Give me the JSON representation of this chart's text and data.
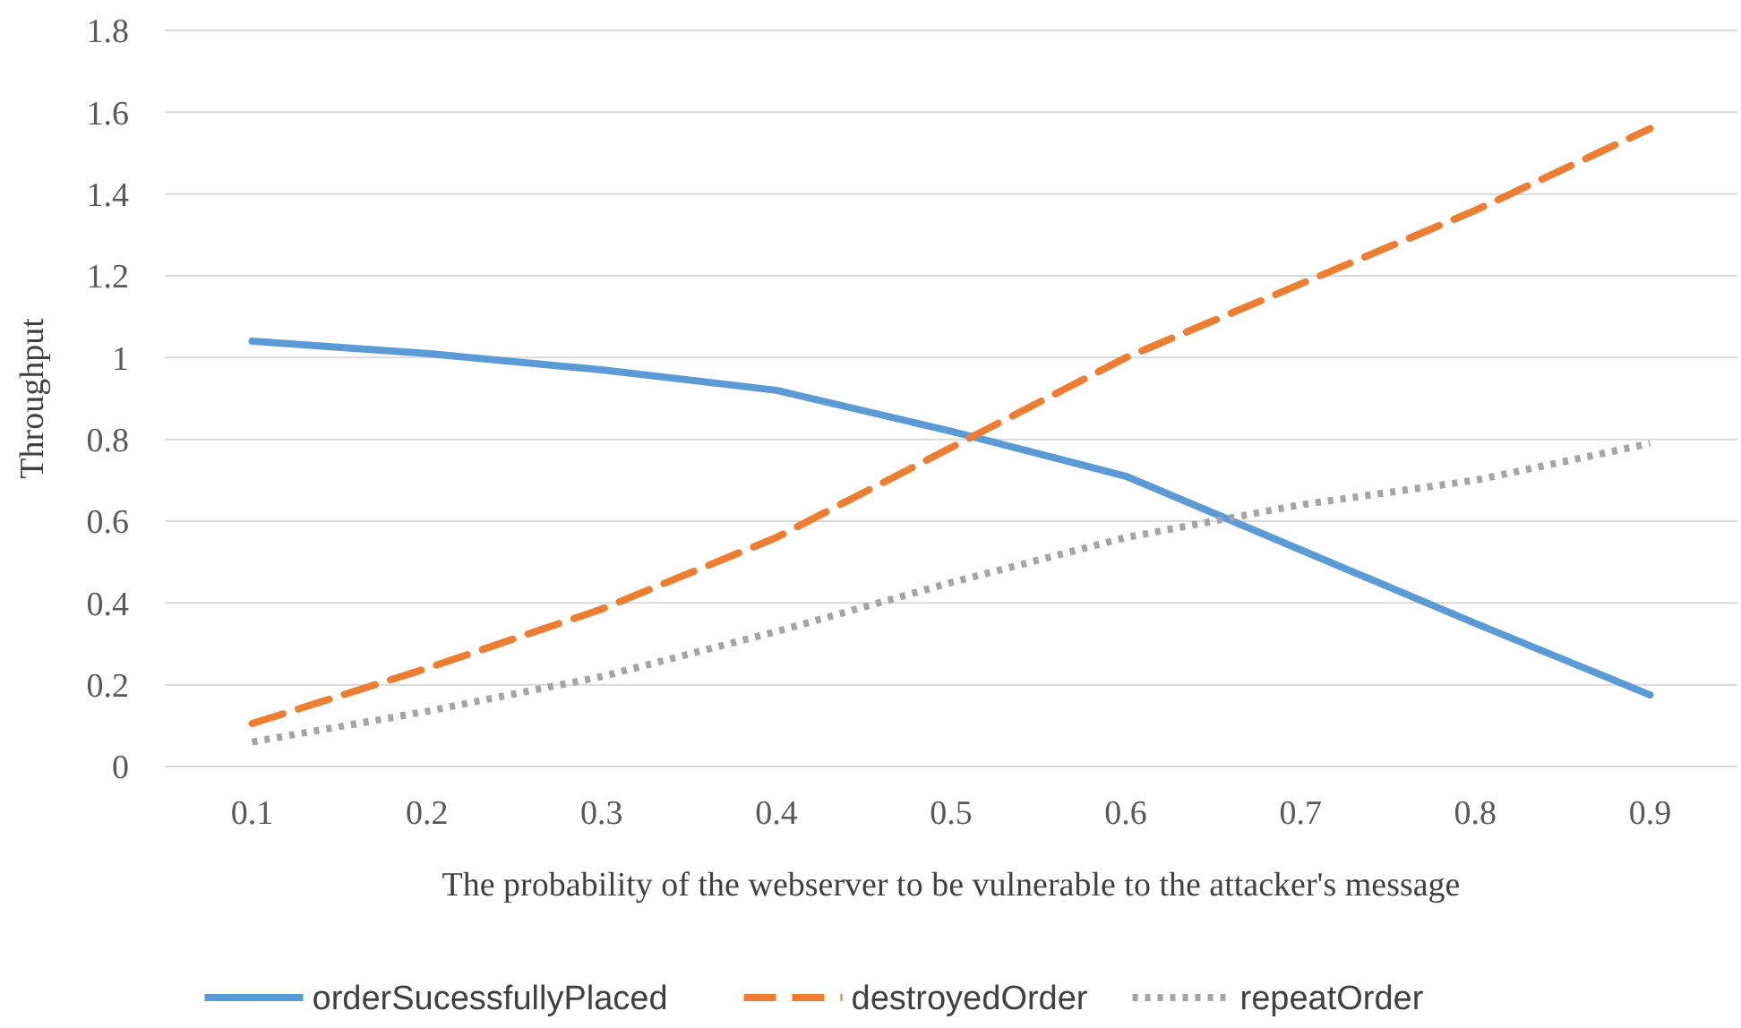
{
  "chart_data": {
    "type": "line",
    "xlabel": "The probability of the webserver to be vulnerable to the attacker's message",
    "ylabel": "Throughput",
    "categories": [
      "0.1",
      "0.2",
      "0.3",
      "0.4",
      "0.5",
      "0.6",
      "0.7",
      "0.8",
      "0.9"
    ],
    "ylim": [
      0,
      1.8
    ],
    "yticks": [
      0,
      0.2,
      0.4,
      0.6,
      0.8,
      1,
      1.2,
      1.4,
      1.6,
      1.8
    ],
    "grid": "y",
    "legend": "bottom",
    "series": [
      {
        "name": "orderSucessfullyPlaced",
        "color": "#5b9bd5",
        "line_style": "solid",
        "values": [
          1.04,
          1.01,
          0.97,
          0.92,
          0.82,
          0.71,
          0.53,
          0.35,
          0.175
        ]
      },
      {
        "name": "destroyedOrder",
        "color": "#ed7d31",
        "line_style": "dashed",
        "values": [
          0.105,
          0.24,
          0.385,
          0.56,
          0.78,
          1.0,
          1.18,
          1.36,
          1.56
        ]
      },
      {
        "name": "repeatOrder",
        "color": "#a5a5a5",
        "line_style": "dotted",
        "values": [
          0.06,
          0.135,
          0.22,
          0.33,
          0.45,
          0.56,
          0.64,
          0.7,
          0.79
        ]
      }
    ]
  }
}
